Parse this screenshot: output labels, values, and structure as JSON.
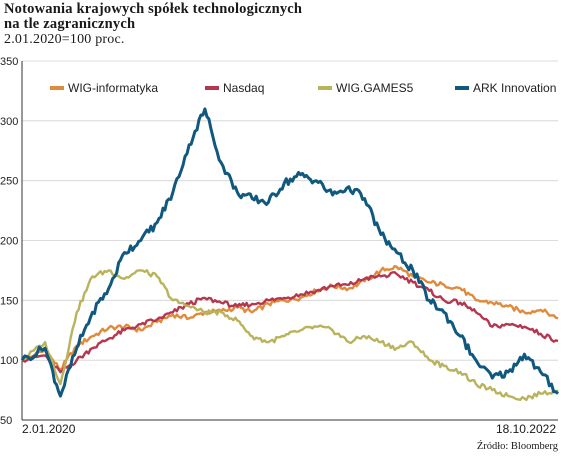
{
  "header": {
    "title_line1": "Notowania krajowych spółek technologicznych",
    "title_line2": "na tle zagranicznych",
    "subtitle": "2.01.2020=100 proc."
  },
  "footer": {
    "date_start": "2.01.2020",
    "date_end": "18.10.2022",
    "source": "Źródło: Bloomberg"
  },
  "chart_data": {
    "type": "line",
    "title": "Notowania krajowych spółek technologicznych na tle zagranicznych",
    "subtitle": "2.01.2020=100 proc.",
    "xlabel": "",
    "ylabel": "",
    "x_start": "2.01.2020",
    "x_end": "18.10.2022",
    "ylim": [
      50,
      350
    ],
    "yticks": [
      50,
      100,
      150,
      200,
      250,
      300,
      350
    ],
    "grid": true,
    "legend_position": "top",
    "x": [
      "2020-01-02",
      "2020-02-15",
      "2020-03-15",
      "2020-04-15",
      "2020-05-15",
      "2020-06-15",
      "2020-07-15",
      "2020-08-15",
      "2020-09-15",
      "2020-10-15",
      "2020-11-15",
      "2020-12-15",
      "2021-01-15",
      "2021-02-15",
      "2021-03-15",
      "2021-04-15",
      "2021-05-15",
      "2021-06-15",
      "2021-07-15",
      "2021-08-15",
      "2021-09-15",
      "2021-10-15",
      "2021-11-15",
      "2021-12-15",
      "2022-01-15",
      "2022-02-15",
      "2022-03-15",
      "2022-04-15",
      "2022-05-15",
      "2022-06-15",
      "2022-07-15",
      "2022-08-15",
      "2022-09-15",
      "2022-10-18"
    ],
    "series": [
      {
        "name": "WIG-informatyka",
        "color": "#e08a3c",
        "values": [
          100,
          108,
          92,
          112,
          120,
          127,
          128,
          125,
          132,
          138,
          135,
          140,
          141,
          144,
          140,
          147,
          150,
          152,
          158,
          162,
          160,
          166,
          175,
          178,
          170,
          165,
          163,
          160,
          150,
          148,
          145,
          140,
          142,
          135
        ]
      },
      {
        "name": "Nasdaq",
        "color": "#b5374f",
        "values": [
          100,
          104,
          90,
          100,
          110,
          118,
          125,
          130,
          134,
          140,
          147,
          152,
          148,
          145,
          147,
          150,
          152,
          155,
          158,
          162,
          163,
          168,
          170,
          172,
          165,
          158,
          150,
          148,
          140,
          128,
          130,
          128,
          122,
          116
        ]
      },
      {
        "name": "WIG.GAMES5",
        "color": "#b9b35c",
        "values": [
          100,
          115,
          80,
          140,
          170,
          175,
          168,
          175,
          170,
          150,
          145,
          140,
          140,
          133,
          120,
          115,
          120,
          125,
          128,
          125,
          115,
          120,
          115,
          110,
          115,
          100,
          95,
          90,
          80,
          75,
          70,
          68,
          72,
          75
        ]
      },
      {
        "name": "ARK Innovation",
        "color": "#10587e",
        "values": [
          100,
          110,
          70,
          110,
          140,
          160,
          190,
          200,
          215,
          240,
          280,
          310,
          265,
          240,
          235,
          232,
          248,
          255,
          250,
          238,
          245,
          235,
          205,
          190,
          175,
          150,
          140,
          120,
          100,
          85,
          90,
          105,
          90,
          72
        ]
      }
    ]
  }
}
